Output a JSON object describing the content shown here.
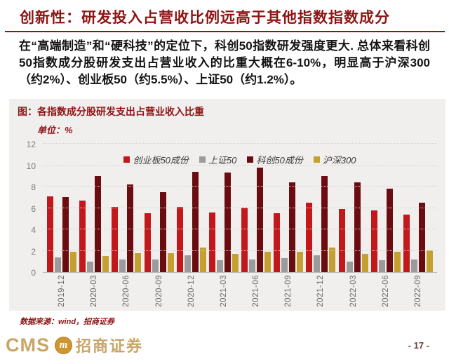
{
  "page": {
    "title": "创新性：研发投入占营收比例远高于其他指数指数成分",
    "body_text": "在“高端制造”和“硬科技”的定位下，科创50指数研发强度更大. 总体来看科创50指数成分股研发支出占营业收入的比重大概在6-10%，明显高于沪深300 （约2%）、创业板50（约5.5%）、上证50（约1.2%）。",
    "page_number": "- 17 -"
  },
  "figure": {
    "title": "图：各指数成分股研发支出占营业收入比重",
    "unit_label": "单位：%",
    "source_note": "数据来源：wind，招商证券"
  },
  "footer": {
    "logo_cms": "CMS",
    "logo_m": "m",
    "logo_cn": "招商证券"
  },
  "colors": {
    "title_red": "#8e1414",
    "panel_bg": "#f0efed",
    "gridline": "#d7d4d0",
    "axis_text": "#6b6b6b",
    "footer_gold": "#c9a567",
    "page_number": "#6f3f3f"
  },
  "chart_data": {
    "type": "bar",
    "title": "图：各指数成分股研发支出占营业收入比重",
    "unit": "%",
    "categories": [
      "2019-12",
      "2020-03",
      "2020-06",
      "2020-09",
      "2020-12",
      "2021-03",
      "2021-06",
      "2021-09",
      "2021-12",
      "2022-03",
      "2022-06",
      "2022-09"
    ],
    "series": [
      {
        "name": "创业板50成份",
        "color": "#c2181c",
        "values": [
          7.1,
          6.7,
          6.1,
          5.5,
          6.1,
          5.6,
          6.0,
          5.5,
          6.5,
          5.9,
          5.8,
          5.4
        ]
      },
      {
        "name": "上证50",
        "color": "#9b9b9b",
        "values": [
          1.4,
          1.0,
          1.2,
          1.2,
          1.6,
          1.1,
          1.2,
          1.3,
          1.6,
          1.0,
          1.1,
          1.2
        ]
      },
      {
        "name": "科创50成份",
        "color": "#6b0d10",
        "values": [
          7.0,
          9.0,
          8.2,
          7.5,
          9.4,
          9.3,
          9.8,
          8.4,
          9.0,
          8.4,
          7.8,
          6.5
        ]
      },
      {
        "name": "沪深300",
        "color": "#c3a02f",
        "values": [
          1.9,
          1.5,
          1.8,
          1.8,
          2.3,
          1.7,
          1.9,
          1.9,
          2.3,
          1.7,
          1.9,
          2.0
        ]
      }
    ],
    "ylim": [
      0,
      12
    ],
    "ytick_interval": 2,
    "grid": "horizontal-dotted",
    "legend_position": "top-center"
  }
}
